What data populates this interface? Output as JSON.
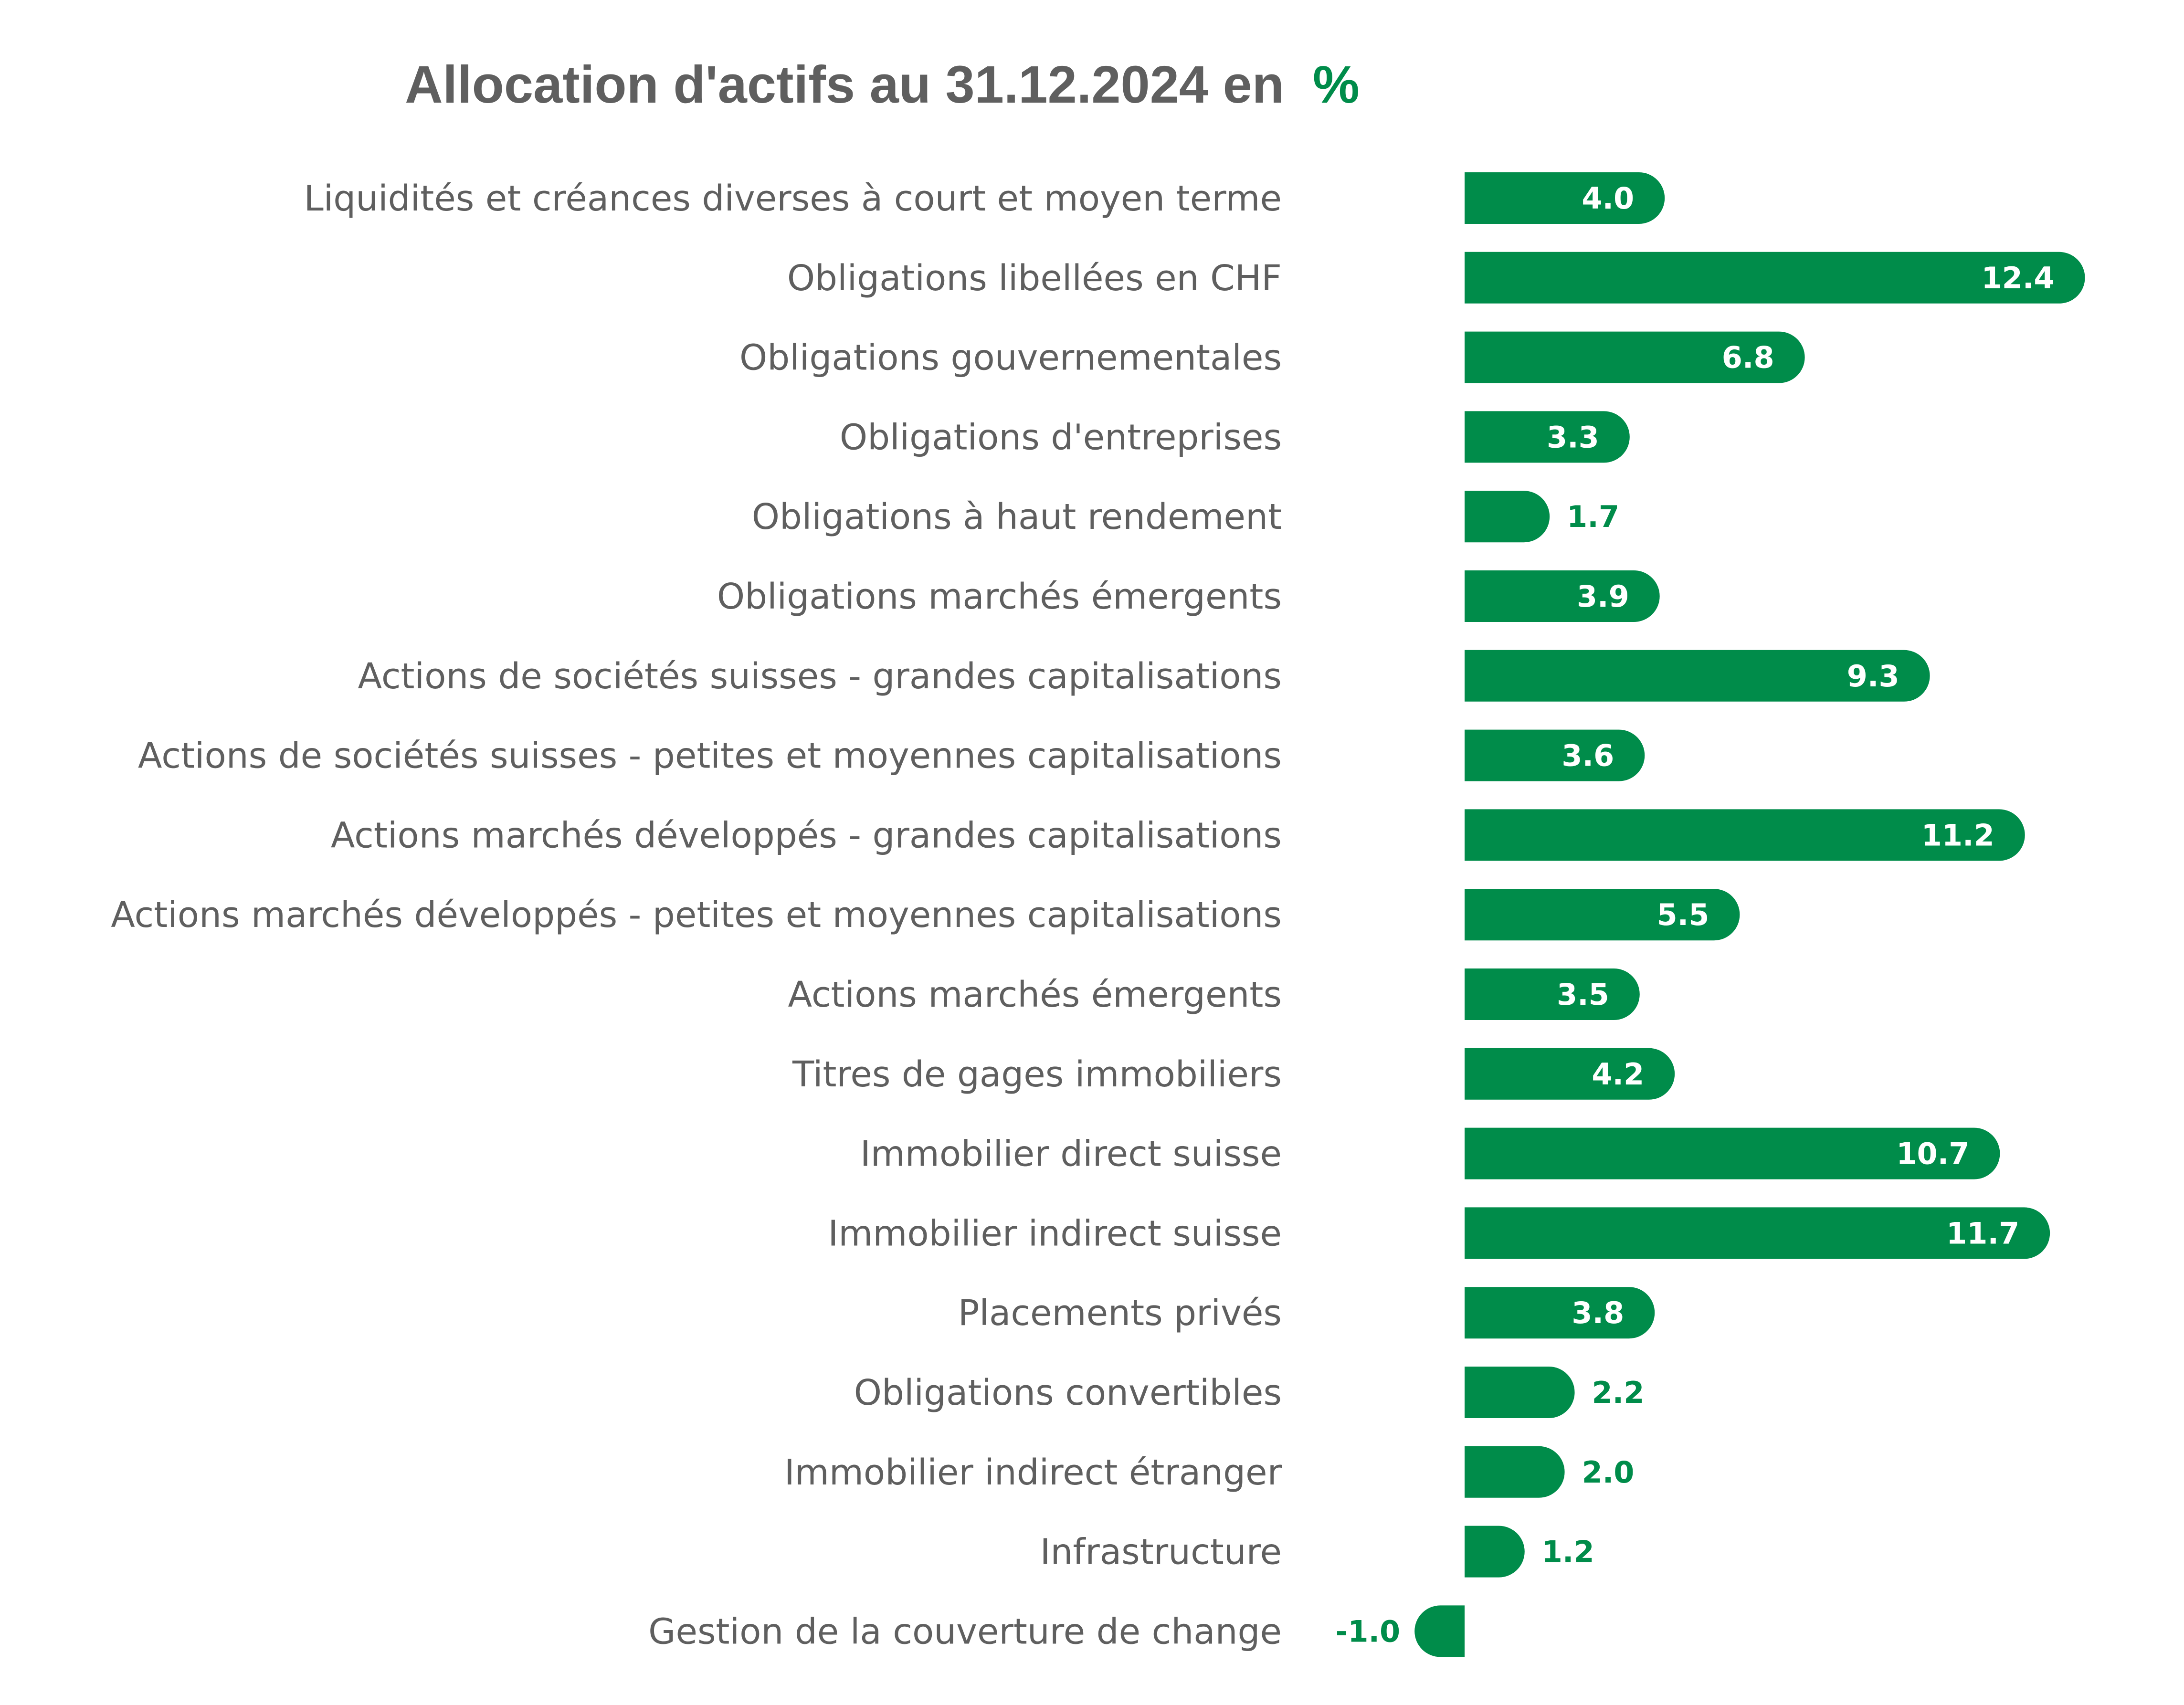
{
  "colors": {
    "bar": "#008c4a",
    "text": "#5f5f5f",
    "inside_label": "#ffffff"
  },
  "chart_data": {
    "type": "bar",
    "orientation": "horizontal",
    "title": "Allocation d'actifs au 31.12.2024 en",
    "title_unit": "%",
    "grid": false,
    "legend": "none",
    "xlim": [
      -1.0,
      12.4
    ],
    "categories": [
      "Liquidités et créances diverses à court et moyen terme",
      "Obligations libellées en CHF",
      "Obligations gouvernementales",
      "Obligations d'entreprises",
      "Obligations à haut rendement",
      "Obligations marchés émergents",
      "Actions de sociétés suisses - grandes capitalisations",
      "Actions de sociétés suisses - petites et moyennes capitalisations",
      "Actions marchés développés - grandes capitalisations",
      "Actions marchés développés - petites et moyennes capitalisations",
      "Actions marchés émergents",
      "Titres de gages immobiliers",
      "Immobilier direct suisse",
      "Immobilier indirect suisse",
      "Placements privés",
      "Obligations convertibles",
      "Immobilier indirect étranger",
      "Infrastructure",
      "Gestion de la couverture de change"
    ],
    "values": [
      4.0,
      12.4,
      6.8,
      3.3,
      1.7,
      3.9,
      9.3,
      3.6,
      11.2,
      5.5,
      3.5,
      4.2,
      10.7,
      11.7,
      3.8,
      2.2,
      2.0,
      1.2,
      -1.0
    ],
    "value_labels": [
      "4.0",
      "12.4",
      "6.8",
      "3.3",
      "1.7",
      "3.9",
      "9.3",
      "3.6",
      "11.2",
      "5.5",
      "3.5",
      "4.2",
      "10.7",
      "11.7",
      "3.8",
      "2.2",
      "2.0",
      "1.2",
      "-1.0"
    ]
  }
}
